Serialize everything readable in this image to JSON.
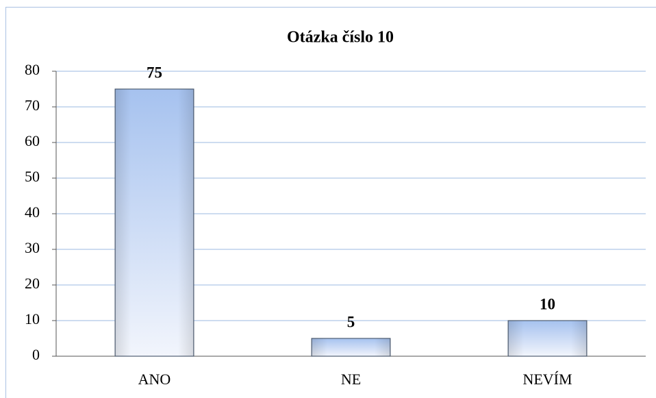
{
  "chart_data": {
    "type": "bar",
    "title": "Otázka číslo 10",
    "categories": [
      "ANO",
      "NE",
      "NEVÍM"
    ],
    "values": [
      75,
      5,
      10
    ],
    "color": "#a6c2ef",
    "ylim": [
      0,
      80
    ],
    "yticks": [
      0,
      10,
      20,
      30,
      40,
      50,
      60,
      70,
      80
    ],
    "grid": true
  }
}
